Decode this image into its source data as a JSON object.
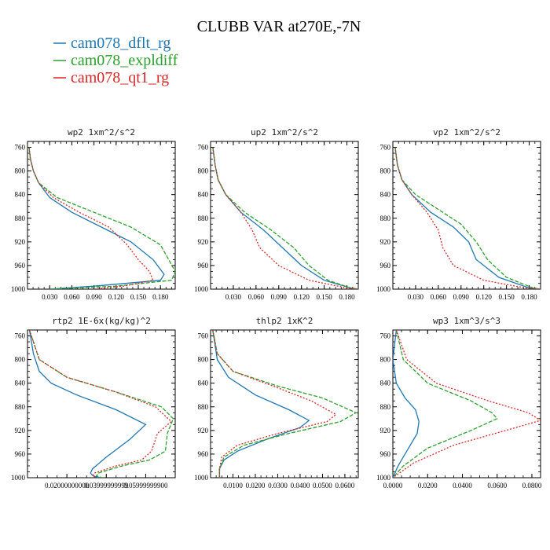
{
  "figure": {
    "title": "CLUBB VAR at270E,-7N",
    "legend": [
      {
        "label": "cam078_dflt_rg",
        "color": "#1f77b4"
      },
      {
        "label": "cam078_expldiff",
        "color": "#2ca02c"
      },
      {
        "label": "cam078_qt1_rg",
        "color": "#d62728"
      }
    ]
  },
  "chart_data": [
    {
      "type": "line",
      "title": "wp2  1xm^2/s^2",
      "ylim": [
        1000,
        750
      ],
      "xlim": [
        0,
        0.2
      ],
      "yticks": [
        760,
        800,
        840,
        880,
        920,
        960,
        1000
      ],
      "xticks": [
        0.03,
        0.06,
        0.09,
        0.12,
        0.15,
        0.18
      ],
      "xtick_labels": [
        "0.030",
        "0.060",
        "0.090",
        "0.120",
        "0.150",
        "0.180"
      ],
      "series": [
        {
          "name": "cam078_dflt_rg",
          "color": "#1f77b4",
          "dash": "",
          "x": [
            0.002,
            0.004,
            0.008,
            0.015,
            0.03,
            0.06,
            0.1,
            0.14,
            0.17,
            0.185,
            0.18,
            0.09,
            0.03
          ],
          "y": [
            760,
            780,
            800,
            820,
            845,
            870,
            895,
            920,
            950,
            975,
            985,
            995,
            1000
          ]
        },
        {
          "name": "cam078_expldiff",
          "color": "#2ca02c",
          "dash": "5,2",
          "x": [
            0.002,
            0.004,
            0.008,
            0.015,
            0.04,
            0.09,
            0.14,
            0.18,
            0.2,
            0.195,
            0.12,
            0.03
          ],
          "y": [
            760,
            780,
            800,
            820,
            845,
            870,
            895,
            925,
            970,
            985,
            995,
            1000
          ]
        },
        {
          "name": "cam078_qt1_rg",
          "color": "#d62728",
          "dash": "2,2",
          "x": [
            0.002,
            0.004,
            0.008,
            0.015,
            0.035,
            0.07,
            0.11,
            0.135,
            0.15,
            0.165,
            0.17,
            0.13,
            0.09
          ],
          "y": [
            760,
            780,
            800,
            820,
            845,
            870,
            895,
            925,
            950,
            970,
            985,
            995,
            1000
          ]
        }
      ]
    },
    {
      "type": "line",
      "title": "up2  1xm^2/s^2",
      "ylim": [
        1000,
        750
      ],
      "xlim": [
        0,
        0.195
      ],
      "yticks": [
        760,
        800,
        840,
        880,
        920,
        960,
        1000
      ],
      "xticks": [
        0.03,
        0.06,
        0.09,
        0.12,
        0.15,
        0.18
      ],
      "xtick_labels": [
        "0.030",
        "0.060",
        "0.090",
        "0.120",
        "0.150",
        "0.180"
      ],
      "series": [
        {
          "name": "cam078_dflt_rg",
          "color": "#1f77b4",
          "dash": "",
          "x": [
            0.003,
            0.006,
            0.01,
            0.02,
            0.04,
            0.07,
            0.095,
            0.12,
            0.15,
            0.185,
            0.195
          ],
          "y": [
            760,
            790,
            815,
            840,
            870,
            900,
            930,
            960,
            985,
            998,
            1000
          ]
        },
        {
          "name": "cam078_expldiff",
          "color": "#2ca02c",
          "dash": "5,2",
          "x": [
            0.003,
            0.006,
            0.01,
            0.02,
            0.045,
            0.08,
            0.11,
            0.13,
            0.155,
            0.185,
            0.195
          ],
          "y": [
            760,
            790,
            815,
            840,
            870,
            900,
            930,
            960,
            985,
            998,
            1000
          ]
        },
        {
          "name": "cam078_qt1_rg",
          "color": "#d62728",
          "dash": "2,2",
          "x": [
            0.003,
            0.006,
            0.01,
            0.02,
            0.04,
            0.055,
            0.065,
            0.09,
            0.13,
            0.18,
            0.195
          ],
          "y": [
            760,
            790,
            815,
            840,
            870,
            900,
            930,
            960,
            985,
            998,
            1000
          ]
        }
      ]
    },
    {
      "type": "line",
      "title": "vp2  1xm^2/s^2",
      "ylim": [
        1000,
        750
      ],
      "xlim": [
        0,
        0.195
      ],
      "yticks": [
        760,
        800,
        840,
        880,
        920,
        960,
        1000
      ],
      "xticks": [
        0.03,
        0.06,
        0.09,
        0.12,
        0.15,
        0.18
      ],
      "xtick_labels": [
        "0.030",
        "0.060",
        "0.090",
        "0.120",
        "0.150",
        "0.180"
      ],
      "series": [
        {
          "name": "cam078_dflt_rg",
          "color": "#1f77b4",
          "dash": "",
          "x": [
            0.003,
            0.006,
            0.012,
            0.025,
            0.05,
            0.08,
            0.1,
            0.11,
            0.14,
            0.18,
            0.195
          ],
          "y": [
            760,
            790,
            815,
            840,
            870,
            895,
            920,
            950,
            980,
            998,
            1000
          ]
        },
        {
          "name": "cam078_expldiff",
          "color": "#2ca02c",
          "dash": "5,2",
          "x": [
            0.003,
            0.006,
            0.012,
            0.03,
            0.06,
            0.09,
            0.11,
            0.125,
            0.15,
            0.185,
            0.195
          ],
          "y": [
            760,
            790,
            815,
            840,
            865,
            890,
            920,
            950,
            980,
            998,
            1000
          ]
        },
        {
          "name": "cam078_qt1_rg",
          "color": "#d62728",
          "dash": "2,2",
          "x": [
            0.003,
            0.006,
            0.012,
            0.025,
            0.045,
            0.06,
            0.066,
            0.08,
            0.12,
            0.175,
            0.195
          ],
          "y": [
            760,
            790,
            815,
            840,
            870,
            900,
            930,
            960,
            985,
            998,
            1000
          ]
        }
      ]
    },
    {
      "type": "line",
      "title": "rtp2  1E-6x(kg/kg)^2",
      "ylim": [
        1000,
        750
      ],
      "xlim": [
        0,
        0.075
      ],
      "yticks": [
        760,
        800,
        840,
        880,
        920,
        960,
        1000
      ],
      "xticks": [
        0.02,
        0.04,
        0.06
      ],
      "xtick_labels": [
        "0.02000000000",
        "0.03999999999",
        "0.05999999900"
      ],
      "series": [
        {
          "name": "cam078_dflt_rg",
          "color": "#1f77b4",
          "dash": "",
          "x": [
            0.001,
            0.003,
            0.006,
            0.012,
            0.025,
            0.045,
            0.06,
            0.052,
            0.04,
            0.033,
            0.032,
            0.033,
            0.035,
            0.038
          ],
          "y": [
            750,
            790,
            820,
            840,
            860,
            885,
            910,
            935,
            965,
            985,
            992,
            996,
            999,
            1000
          ]
        },
        {
          "name": "cam078_expldiff",
          "color": "#2ca02c",
          "dash": "5,2",
          "x": [
            0.001,
            0.006,
            0.02,
            0.045,
            0.068,
            0.074,
            0.071,
            0.07,
            0.062,
            0.048,
            0.036,
            0.035,
            0.038
          ],
          "y": [
            750,
            800,
            830,
            855,
            880,
            900,
            925,
            955,
            970,
            980,
            992,
            997,
            1000
          ]
        },
        {
          "name": "cam078_qt1_rg",
          "color": "#d62728",
          "dash": "2,2",
          "x": [
            0.001,
            0.006,
            0.02,
            0.045,
            0.065,
            0.073,
            0.066,
            0.063,
            0.058,
            0.045,
            0.034,
            0.033,
            0.035
          ],
          "y": [
            750,
            800,
            830,
            855,
            880,
            905,
            925,
            955,
            970,
            980,
            992,
            997,
            1000
          ]
        }
      ]
    },
    {
      "type": "line",
      "title": "thlp2  1xK^2",
      "ylim": [
        1000,
        750
      ],
      "xlim": [
        0,
        0.066
      ],
      "yticks": [
        760,
        800,
        840,
        880,
        920,
        960,
        1000
      ],
      "xticks": [
        0.01,
        0.02,
        0.03,
        0.04,
        0.05,
        0.06
      ],
      "xtick_labels": [
        "0.0100",
        "0.0200",
        "0.0300",
        "0.0400",
        "0.0500",
        "0.0600"
      ],
      "series": [
        {
          "name": "cam078_dflt_rg",
          "color": "#1f77b4",
          "dash": "",
          "x": [
            0.001,
            0.003,
            0.008,
            0.02,
            0.035,
            0.044,
            0.04,
            0.025,
            0.012,
            0.006,
            0.004,
            0.004
          ],
          "y": [
            750,
            800,
            830,
            860,
            885,
            903,
            915,
            935,
            955,
            970,
            985,
            1000
          ]
        },
        {
          "name": "cam078_expldiff",
          "color": "#2ca02c",
          "dash": "5,2",
          "x": [
            0.001,
            0.003,
            0.01,
            0.03,
            0.05,
            0.065,
            0.058,
            0.035,
            0.015,
            0.006,
            0.004,
            0.004
          ],
          "y": [
            750,
            790,
            820,
            845,
            865,
            890,
            905,
            925,
            945,
            965,
            985,
            1000
          ]
        },
        {
          "name": "cam078_qt1_rg",
          "color": "#d62728",
          "dash": "2,2",
          "x": [
            0.001,
            0.003,
            0.01,
            0.028,
            0.045,
            0.056,
            0.052,
            0.03,
            0.012,
            0.005,
            0.004,
            0.004
          ],
          "y": [
            750,
            790,
            820,
            845,
            870,
            893,
            905,
            925,
            945,
            965,
            985,
            1000
          ]
        }
      ]
    },
    {
      "type": "line",
      "title": "wp3  1xm^3/s^3",
      "ylim": [
        1000,
        750
      ],
      "xlim": [
        0,
        0.085
      ],
      "yticks": [
        760,
        800,
        840,
        880,
        920,
        960,
        1000
      ],
      "xticks": [
        0,
        0.02,
        0.04,
        0.06,
        0.08
      ],
      "xtick_labels": [
        "0.0000",
        "0.0200",
        "0.0400",
        "0.0600",
        "0.0800"
      ],
      "series": [
        {
          "name": "cam078_dflt_rg",
          "color": "#1f77b4",
          "dash": "",
          "x": [
            0.002,
            0.0,
            0.002,
            0.007,
            0.013,
            0.015,
            0.014,
            0.008,
            0.003,
            0.0
          ],
          "y": [
            750,
            800,
            840,
            865,
            885,
            905,
            925,
            955,
            980,
            1000
          ]
        },
        {
          "name": "cam078_expldiff",
          "color": "#2ca02c",
          "dash": "5,2",
          "x": [
            0.002,
            0.006,
            0.02,
            0.045,
            0.057,
            0.06,
            0.045,
            0.02,
            0.006,
            0.0
          ],
          "y": [
            750,
            800,
            840,
            870,
            890,
            900,
            920,
            950,
            980,
            1000
          ]
        },
        {
          "name": "cam078_qt1_rg",
          "color": "#d62728",
          "dash": "2,2",
          "x": [
            0.002,
            0.008,
            0.025,
            0.055,
            0.078,
            0.085,
            0.065,
            0.035,
            0.012,
            0.0
          ],
          "y": [
            750,
            800,
            840,
            870,
            890,
            903,
            920,
            945,
            975,
            1000
          ]
        }
      ]
    }
  ]
}
